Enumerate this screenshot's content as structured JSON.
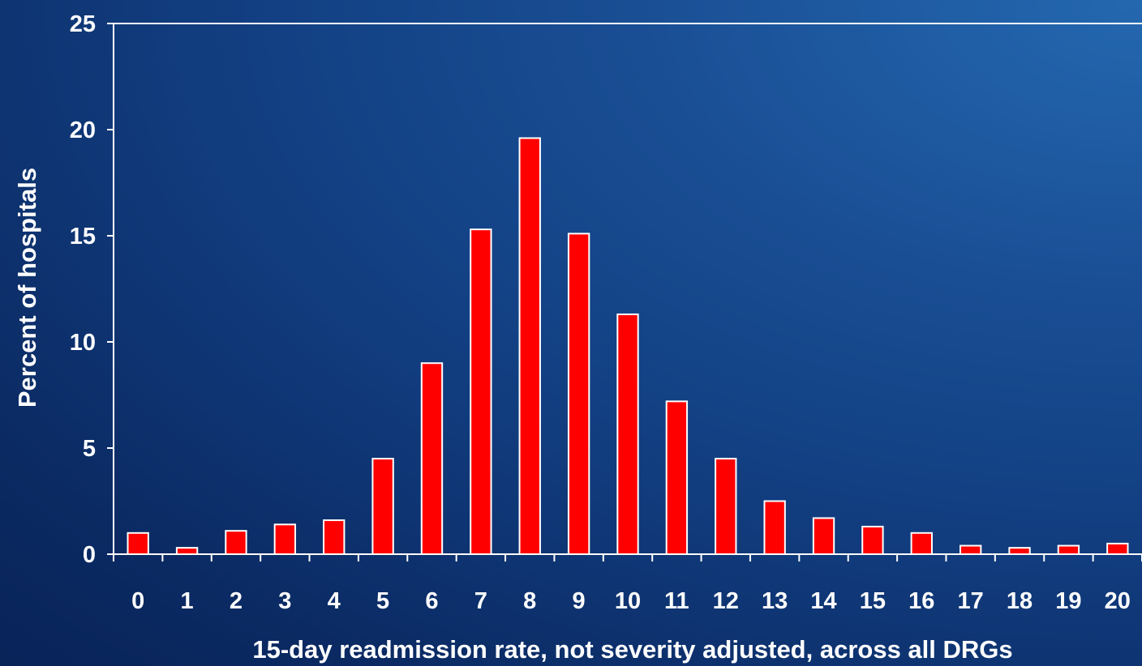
{
  "chart_data": {
    "type": "bar",
    "title": "",
    "xlabel": "15-day readmission rate, not severity adjusted, across all DRGs",
    "ylabel": "Percent of hospitals",
    "categories": [
      "0",
      "1",
      "2",
      "3",
      "4",
      "5",
      "6",
      "7",
      "8",
      "9",
      "10",
      "11",
      "12",
      "13",
      "14",
      "15",
      "16",
      "17",
      "18",
      "19",
      "20"
    ],
    "values": [
      1.0,
      0.3,
      1.1,
      1.4,
      1.6,
      4.5,
      9.0,
      15.3,
      19.6,
      15.1,
      11.3,
      7.2,
      4.5,
      2.5,
      1.7,
      1.3,
      1.0,
      0.4,
      0.3,
      0.4,
      0.5
    ],
    "ylim": [
      0,
      25
    ],
    "yticks": [
      "0",
      "5",
      "10",
      "15",
      "20",
      "25"
    ],
    "grid": false,
    "colors": {
      "bar": "#ff0000",
      "bar_outline": "#ffffff",
      "text": "#ffffff",
      "background": "#123f82"
    }
  }
}
